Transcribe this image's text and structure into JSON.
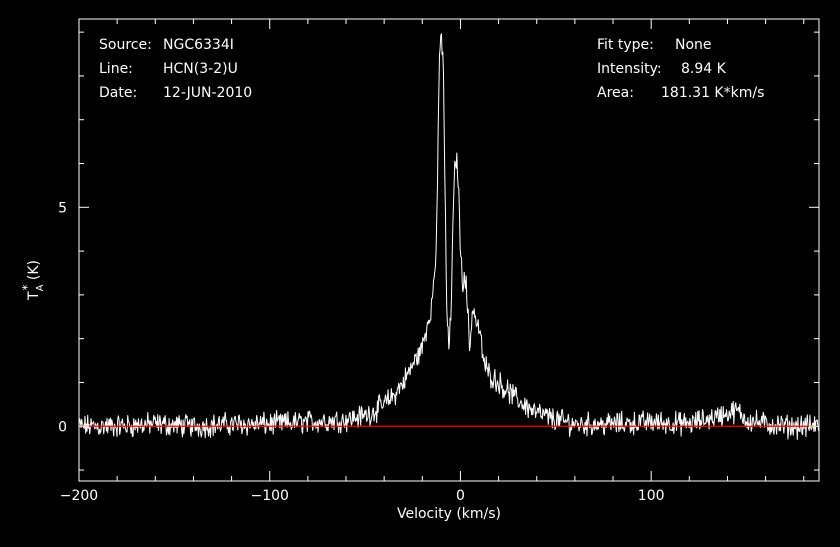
{
  "header": {
    "source_label": "Source:",
    "source_value": "NGC6334I",
    "line_label": "Line:",
    "line_value": "HCN(3-2)U",
    "date_label": "Date:",
    "date_value": "12-JUN-2010",
    "fit_label": "Fit type:",
    "fit_value": "None",
    "intensity_label": "Intensity:",
    "intensity_value": "8.94 K",
    "area_label": "Area:",
    "area_value": "181.31 K*km/s"
  },
  "colors": {
    "background": "#000000",
    "foreground": "#ffffff",
    "baseline": "#ff0000"
  },
  "chart_data": {
    "type": "line",
    "xlabel": "Velocity (km/s)",
    "ylabel_main": "T",
    "ylabel_sup": "*",
    "ylabel_sub": "A",
    "ylabel_unit": " (K)",
    "xlim": [
      -200,
      188
    ],
    "ylim": [
      -1.25,
      9.3
    ],
    "xticks": [
      -200,
      -100,
      0,
      100
    ],
    "xtick_labels": [
      "−200",
      "−100",
      "0",
      "100"
    ],
    "yticks": [
      0,
      5
    ],
    "ytick_labels": [
      "0",
      "5"
    ],
    "baseline_y": 0,
    "grid": false,
    "series": [
      {
        "x": [
          -200,
          -180,
          -160,
          -140,
          -120,
          -100,
          -80,
          -60,
          -50,
          -45,
          -40,
          -35,
          -30,
          -25,
          -20,
          -18,
          -15,
          -13,
          -12,
          -11,
          -10,
          -9,
          -8,
          -7,
          -6,
          -5,
          -4,
          -3,
          -2,
          -1,
          0,
          1,
          2,
          3,
          4,
          5,
          6,
          7,
          8,
          10,
          12,
          15,
          20,
          25,
          30,
          40,
          50,
          60,
          80,
          100,
          120,
          140,
          145,
          150,
          160,
          170,
          188
        ],
        "y": [
          0.0,
          0.0,
          0.05,
          0.0,
          0.05,
          0.05,
          0.1,
          0.15,
          0.25,
          0.35,
          0.5,
          0.7,
          1.0,
          1.4,
          1.8,
          2.2,
          2.8,
          3.8,
          5.5,
          8.5,
          8.9,
          8.4,
          5.0,
          2.4,
          1.8,
          2.5,
          4.5,
          5.8,
          6.2,
          5.5,
          4.0,
          3.3,
          3.5,
          3.2,
          2.5,
          1.7,
          2.6,
          2.7,
          2.4,
          2.2,
          1.5,
          1.2,
          1.0,
          0.8,
          0.6,
          0.3,
          0.15,
          0.05,
          0.05,
          0.1,
          0.05,
          0.3,
          0.35,
          0.15,
          0.05,
          0.0,
          0.0
        ]
      }
    ]
  }
}
